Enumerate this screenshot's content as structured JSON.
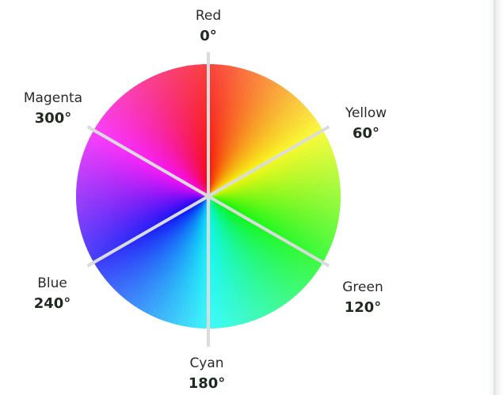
{
  "diagram": {
    "hues": [
      {
        "name": "Red",
        "degrees": "0°",
        "color": "#ff0000"
      },
      {
        "name": "Yellow",
        "degrees": "60°",
        "color": "#ffff00"
      },
      {
        "name": "Green",
        "degrees": "120°",
        "color": "#00ff00"
      },
      {
        "name": "Cyan",
        "degrees": "180°",
        "color": "#00ffff"
      },
      {
        "name": "Blue",
        "degrees": "240°",
        "color": "#0000ff"
      },
      {
        "name": "Magenta",
        "degrees": "300°",
        "color": "#ff00ff"
      }
    ],
    "divider_color": "#d9dcdb"
  }
}
